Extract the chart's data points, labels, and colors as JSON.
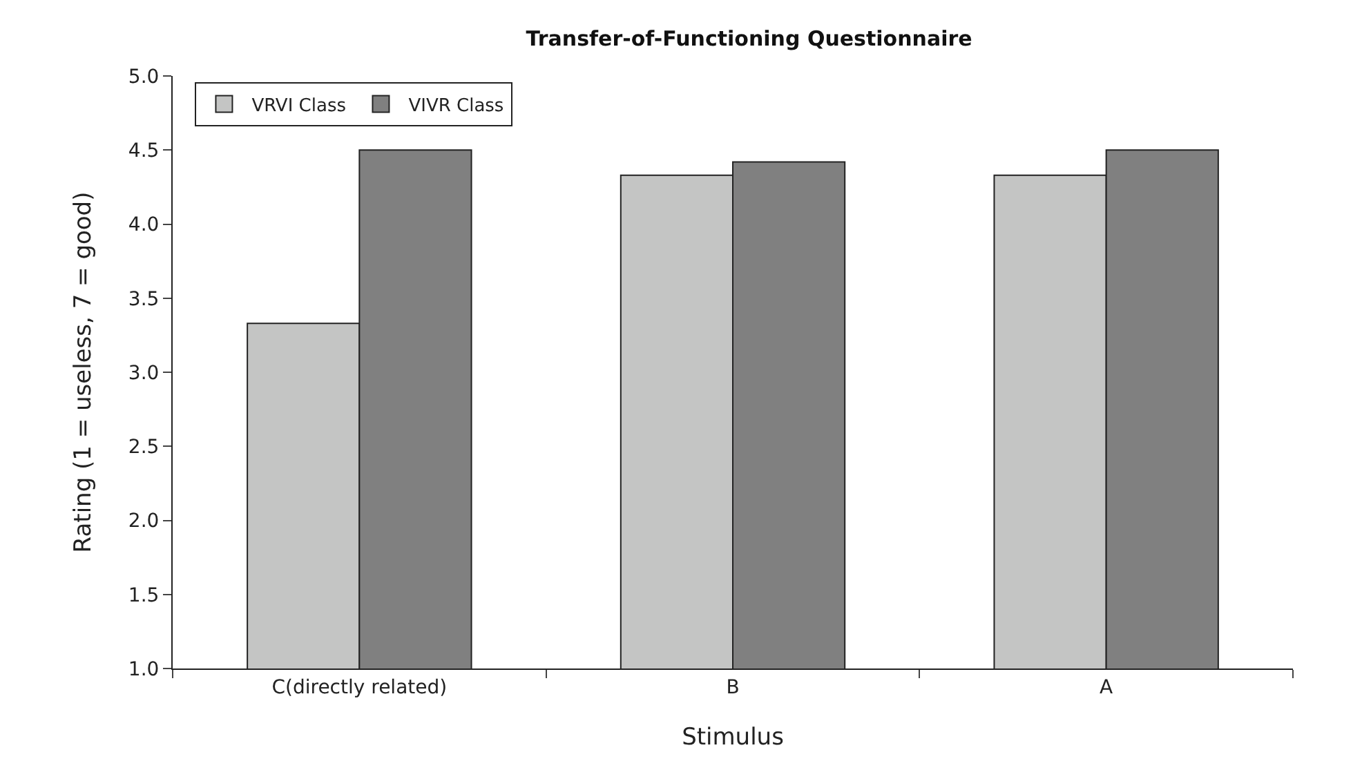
{
  "chart_data": {
    "type": "bar",
    "title": "Transfer-of-Functioning Questionnaire",
    "xlabel": "Stimulus",
    "ylabel": "Rating (1 = useless, 7 = good)",
    "categories": [
      "C(directly related)",
      "B",
      "A"
    ],
    "series": [
      {
        "name": "VRVI Class",
        "color": "#c4c5c4",
        "values": [
          3.33,
          4.33,
          4.33
        ]
      },
      {
        "name": "VIVR Class",
        "color": "#808080",
        "values": [
          4.5,
          4.42,
          4.5
        ]
      }
    ],
    "ylim": [
      1.0,
      5.0
    ],
    "yticks": [
      {
        "value": 1,
        "label": "1.0"
      },
      {
        "value": 1.5,
        "label": "1.5"
      },
      {
        "value": 2,
        "label": "2.0"
      },
      {
        "value": 2.5,
        "label": "2.5"
      },
      {
        "value": 3,
        "label": "3.0"
      },
      {
        "value": 3.5,
        "label": "3.5"
      },
      {
        "value": 4,
        "label": "4.0"
      },
      {
        "value": 4.5,
        "label": "4.5"
      },
      {
        "value": 5,
        "label": "5.0"
      }
    ],
    "grid": false,
    "legend": "top left"
  }
}
